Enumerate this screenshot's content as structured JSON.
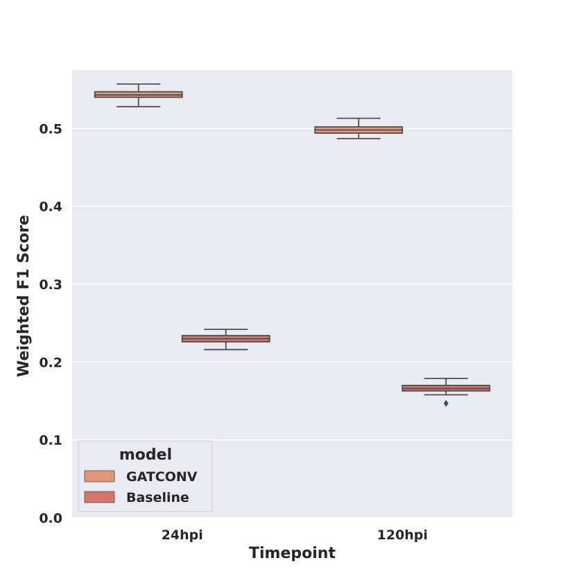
{
  "chart_data": {
    "type": "box",
    "xlabel": "Timepoint",
    "ylabel": "Weighted F1 Score",
    "ylim": [
      0.0,
      0.575
    ],
    "yticks": [
      "0.0",
      "0.1",
      "0.2",
      "0.3",
      "0.4",
      "0.5"
    ],
    "ytick_values": [
      0.0,
      0.1,
      0.2,
      0.3,
      0.4,
      0.5
    ],
    "categories": [
      "24hpi",
      "120hpi"
    ],
    "grid": true,
    "legend": {
      "title": "model",
      "position": "lower-left"
    },
    "series": [
      {
        "name": "GATCONV",
        "color": "#e3957a",
        "boxes": [
          {
            "category": "24hpi",
            "whislo": 0.528,
            "q1": 0.54,
            "median": 0.543,
            "q3": 0.547,
            "whishi": 0.557,
            "fliers": []
          },
          {
            "category": "120hpi",
            "whislo": 0.487,
            "q1": 0.494,
            "median": 0.498,
            "q3": 0.502,
            "whishi": 0.513,
            "fliers": []
          }
        ]
      },
      {
        "name": "Baseline",
        "color": "#d6736a",
        "boxes": [
          {
            "category": "24hpi",
            "whislo": 0.216,
            "q1": 0.226,
            "median": 0.23,
            "q3": 0.234,
            "whishi": 0.242,
            "fliers": []
          },
          {
            "category": "120hpi",
            "whislo": 0.158,
            "q1": 0.163,
            "median": 0.166,
            "q3": 0.17,
            "whishi": 0.179,
            "fliers": [
              0.147
            ]
          }
        ]
      }
    ]
  }
}
